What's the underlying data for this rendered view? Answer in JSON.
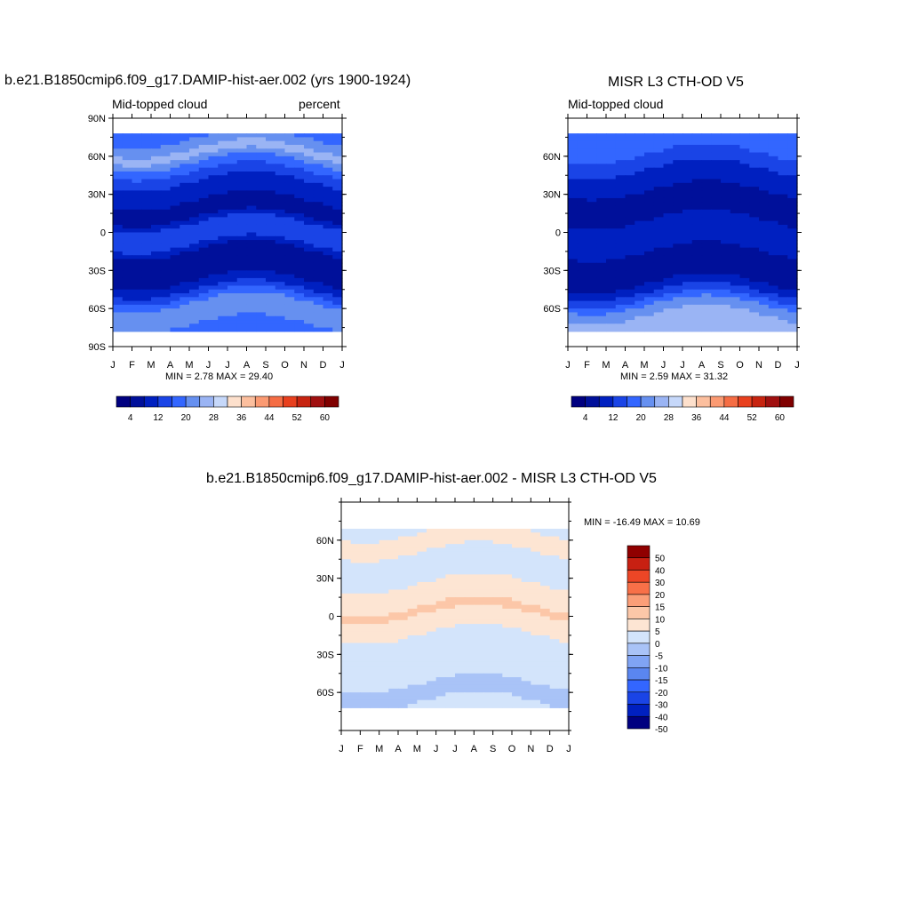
{
  "figure": {
    "panel1": {
      "title": "b.e21.B1850cmip6.f09_g17.DAMIP-hist-aer.002 (yrs 1900-1924)",
      "left_label": "Mid-topped cloud",
      "right_label": "percent",
      "stats": "MIN =   2.78 MAX =  29.40"
    },
    "panel2": {
      "title": "MISR L3 CTH-OD V5",
      "left_label": "Mid-topped cloud",
      "stats": "MIN =   2.59 MAX =  31.32"
    },
    "panel3": {
      "title": "b.e21.B1850cmip6.f09_g17.DAMIP-hist-aer.002 - MISR L3 CTH-OD V5",
      "stats": "MIN = -16.49 MAX =  10.69"
    }
  },
  "chart_data": [
    {
      "type": "heatmap",
      "title": "b.e21.B1850cmip6.f09_g17.DAMIP-hist-aer.002 (yrs 1900-1924)",
      "x_ticks": [
        "J",
        "F",
        "M",
        "A",
        "M",
        "J",
        "J",
        "A",
        "S",
        "O",
        "N",
        "D",
        "J"
      ],
      "y_ticks": [
        "90N",
        "60N",
        "30N",
        "0",
        "30S",
        "60S",
        "90S"
      ],
      "ylim": [
        -90,
        90
      ],
      "levels": [
        4,
        8,
        12,
        16,
        20,
        24,
        28,
        32,
        36,
        40,
        44,
        48,
        52,
        56,
        60
      ],
      "colorbar_labels": [
        "4",
        "12",
        "20",
        "28",
        "36",
        "44",
        "52",
        "60"
      ],
      "colors": [
        "#000080",
        "#00109a",
        "#0020c0",
        "#1a44e6",
        "#3366ff",
        "#6690f0",
        "#9ab4f4",
        "#c6d8fa",
        "#fde0cc",
        "#fcbf9e",
        "#fb9a72",
        "#f56d44",
        "#e8401e",
        "#c72410",
        "#a01010",
        "#800000"
      ],
      "latitude_profile": [
        {
          "lat": 78,
          "value": 18
        },
        {
          "lat": 70,
          "value": 22
        },
        {
          "lat": 62,
          "value": 26
        },
        {
          "lat": 55,
          "value": 20
        },
        {
          "lat": 45,
          "value": 14
        },
        {
          "lat": 35,
          "value": 10
        },
        {
          "lat": 25,
          "value": 8
        },
        {
          "lat": 15,
          "value": 5
        },
        {
          "lat": 5,
          "value": 14
        },
        {
          "lat": -5,
          "value": 16
        },
        {
          "lat": -15,
          "value": 7
        },
        {
          "lat": -25,
          "value": 5
        },
        {
          "lat": -35,
          "value": 6
        },
        {
          "lat": -45,
          "value": 12
        },
        {
          "lat": -55,
          "value": 20
        },
        {
          "lat": -65,
          "value": 24
        },
        {
          "lat": -75,
          "value": 18
        }
      ],
      "min": 2.78,
      "max": 29.4,
      "units": "percent"
    },
    {
      "type": "heatmap",
      "title": "MISR L3 CTH-OD V5",
      "x_ticks": [
        "J",
        "F",
        "M",
        "A",
        "M",
        "J",
        "J",
        "A",
        "S",
        "O",
        "N",
        "D",
        "J"
      ],
      "y_ticks": [
        "60N",
        "30N",
        "0",
        "30S",
        "60S"
      ],
      "ylim": [
        -90,
        90
      ],
      "levels": [
        4,
        8,
        12,
        16,
        20,
        24,
        28,
        32,
        36,
        40,
        44,
        48,
        52,
        56,
        60
      ],
      "colorbar_labels": [
        "4",
        "12",
        "20",
        "28",
        "36",
        "44",
        "52",
        "60"
      ],
      "colors": [
        "#000080",
        "#00109a",
        "#0020c0",
        "#1a44e6",
        "#3366ff",
        "#6690f0",
        "#9ab4f4",
        "#c6d8fa",
        "#fde0cc",
        "#fcbf9e",
        "#fb9a72",
        "#f56d44",
        "#e8401e",
        "#c72410",
        "#a01010",
        "#800000"
      ],
      "latitude_profile": [
        {
          "lat": 78,
          "value": 18
        },
        {
          "lat": 70,
          "value": 20
        },
        {
          "lat": 62,
          "value": 16
        },
        {
          "lat": 50,
          "value": 12
        },
        {
          "lat": 40,
          "value": 10
        },
        {
          "lat": 30,
          "value": 7
        },
        {
          "lat": 20,
          "value": 6
        },
        {
          "lat": 10,
          "value": 8
        },
        {
          "lat": 0,
          "value": 12
        },
        {
          "lat": -10,
          "value": 10
        },
        {
          "lat": -20,
          "value": 6
        },
        {
          "lat": -30,
          "value": 5
        },
        {
          "lat": -40,
          "value": 8
        },
        {
          "lat": -50,
          "value": 14
        },
        {
          "lat": -60,
          "value": 22
        },
        {
          "lat": -70,
          "value": 26
        }
      ],
      "min": 2.59,
      "max": 31.32
    },
    {
      "type": "heatmap",
      "title": "b.e21.B1850cmip6.f09_g17.DAMIP-hist-aer.002 - MISR L3 CTH-OD V5",
      "x_ticks": [
        "J",
        "F",
        "M",
        "A",
        "M",
        "J",
        "J",
        "A",
        "S",
        "O",
        "N",
        "D",
        "J"
      ],
      "y_ticks": [
        "60N",
        "30N",
        "0",
        "30S",
        "60S"
      ],
      "ylim": [
        -90,
        90
      ],
      "levels": [
        -50,
        -40,
        -30,
        -20,
        -15,
        -10,
        -5,
        0,
        5,
        10,
        15,
        20,
        30,
        40,
        50
      ],
      "colorbar_labels": [
        "50",
        "40",
        "30",
        "20",
        "15",
        "10",
        "5",
        "0",
        "-5",
        "-10",
        "-15",
        "-20",
        "-30",
        "-40",
        "-50"
      ],
      "colors": [
        "#000080",
        "#0020c0",
        "#1a44e6",
        "#3366ff",
        "#5a86f0",
        "#80a4f4",
        "#a9c3f7",
        "#d3e4fb",
        "#fde5d3",
        "#fcc7a8",
        "#fb9e78",
        "#f87048",
        "#ec4626",
        "#c82012",
        "#900000"
      ],
      "latitude_profile": [
        {
          "lat": 70,
          "value": -2
        },
        {
          "lat": 60,
          "value": 3
        },
        {
          "lat": 45,
          "value": -2
        },
        {
          "lat": 30,
          "value": -1
        },
        {
          "lat": 15,
          "value": 3
        },
        {
          "lat": 5,
          "value": 6
        },
        {
          "lat": -5,
          "value": 3
        },
        {
          "lat": -20,
          "value": -2
        },
        {
          "lat": -45,
          "value": -3
        },
        {
          "lat": -60,
          "value": -7
        },
        {
          "lat": -70,
          "value": -4
        }
      ],
      "min": -16.49,
      "max": 10.69
    }
  ]
}
